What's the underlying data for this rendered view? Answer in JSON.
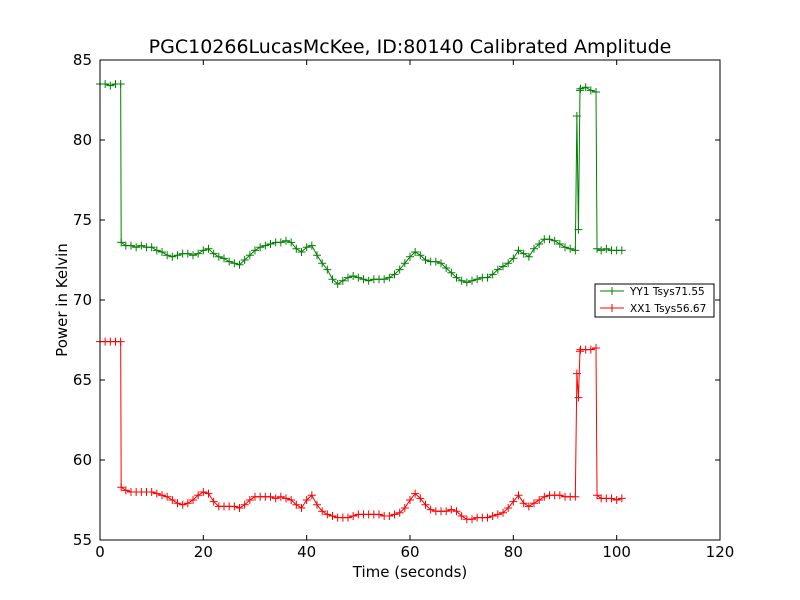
{
  "chart_data": {
    "type": "line",
    "title": "PGC10266LucasMcKee, ID:80140 Calibrated Amplitude",
    "xlabel": "Time (seconds)",
    "ylabel": "Power in Kelvin",
    "xlim": [
      0,
      120
    ],
    "ylim": [
      55,
      85
    ],
    "x_ticks": [
      "0",
      "20",
      "40",
      "60",
      "80",
      "100",
      "120"
    ],
    "y_ticks": [
      "55",
      "60",
      "65",
      "70",
      "75",
      "80",
      "85"
    ],
    "grid": false,
    "legend_placement": "center-right",
    "series": [
      {
        "name": "YY1 Tsys71.55",
        "color": "#008000",
        "marker": "+",
        "points": [
          [
            0,
            83.5
          ],
          [
            1,
            83.5
          ],
          [
            2,
            83.4
          ],
          [
            3,
            83.5
          ],
          [
            4,
            83.5
          ],
          [
            4.1,
            73.6
          ],
          [
            5,
            73.4
          ],
          [
            6,
            73.4
          ],
          [
            7,
            73.3
          ],
          [
            8,
            73.4
          ],
          [
            9,
            73.3
          ],
          [
            10,
            73.3
          ],
          [
            11,
            73.1
          ],
          [
            12,
            73.0
          ],
          [
            13,
            72.8
          ],
          [
            14,
            72.7
          ],
          [
            15,
            72.8
          ],
          [
            16,
            72.9
          ],
          [
            17,
            72.9
          ],
          [
            18,
            72.8
          ],
          [
            19,
            72.9
          ],
          [
            20,
            73.1
          ],
          [
            21,
            73.2
          ],
          [
            22,
            72.9
          ],
          [
            23,
            72.7
          ],
          [
            24,
            72.6
          ],
          [
            25,
            72.4
          ],
          [
            26,
            72.3
          ],
          [
            27,
            72.2
          ],
          [
            28,
            72.5
          ],
          [
            29,
            72.8
          ],
          [
            30,
            73.1
          ],
          [
            31,
            73.3
          ],
          [
            32,
            73.4
          ],
          [
            33,
            73.5
          ],
          [
            34,
            73.6
          ],
          [
            35,
            73.6
          ],
          [
            36,
            73.7
          ],
          [
            37,
            73.6
          ],
          [
            38,
            73.2
          ],
          [
            39,
            73.0
          ],
          [
            40,
            73.3
          ],
          [
            41,
            73.4
          ],
          [
            42,
            72.8
          ],
          [
            43,
            72.3
          ],
          [
            44,
            71.9
          ],
          [
            45,
            71.3
          ],
          [
            46,
            71.0
          ],
          [
            47,
            71.2
          ],
          [
            48,
            71.4
          ],
          [
            49,
            71.5
          ],
          [
            50,
            71.4
          ],
          [
            51,
            71.3
          ],
          [
            52,
            71.2
          ],
          [
            53,
            71.3
          ],
          [
            54,
            71.3
          ],
          [
            55,
            71.3
          ],
          [
            56,
            71.4
          ],
          [
            57,
            71.6
          ],
          [
            58,
            71.9
          ],
          [
            59,
            72.3
          ],
          [
            60,
            72.7
          ],
          [
            61,
            73.0
          ],
          [
            62,
            72.8
          ],
          [
            63,
            72.5
          ],
          [
            64,
            72.4
          ],
          [
            65,
            72.4
          ],
          [
            66,
            72.3
          ],
          [
            67,
            72.0
          ],
          [
            68,
            71.7
          ],
          [
            69,
            71.4
          ],
          [
            70,
            71.2
          ],
          [
            71,
            71.1
          ],
          [
            72,
            71.2
          ],
          [
            73,
            71.3
          ],
          [
            74,
            71.4
          ],
          [
            75,
            71.4
          ],
          [
            76,
            71.6
          ],
          [
            77,
            71.9
          ],
          [
            78,
            72.1
          ],
          [
            79,
            72.3
          ],
          [
            80,
            72.6
          ],
          [
            81,
            73.1
          ],
          [
            82,
            72.9
          ],
          [
            83,
            72.7
          ],
          [
            84,
            73.2
          ],
          [
            85,
            73.5
          ],
          [
            86,
            73.8
          ],
          [
            87,
            73.8
          ],
          [
            88,
            73.7
          ],
          [
            89,
            73.5
          ],
          [
            90,
            73.3
          ],
          [
            91,
            73.2
          ],
          [
            92,
            73.1
          ],
          [
            92.3,
            81.5
          ],
          [
            92.6,
            74.4
          ],
          [
            92.9,
            83.1
          ],
          [
            93,
            83.2
          ],
          [
            94,
            83.3
          ],
          [
            95,
            83.1
          ],
          [
            96,
            83.0
          ],
          [
            96.2,
            73.2
          ],
          [
            97,
            73.1
          ],
          [
            98,
            73.2
          ],
          [
            99,
            73.1
          ],
          [
            100,
            73.1
          ],
          [
            101,
            73.1
          ]
        ]
      },
      {
        "name": "XX1 Tsys56.67",
        "color": "#ff0000",
        "marker": "+",
        "points": [
          [
            0,
            67.4
          ],
          [
            1,
            67.4
          ],
          [
            2,
            67.4
          ],
          [
            3,
            67.4
          ],
          [
            4,
            67.4
          ],
          [
            4.1,
            58.3
          ],
          [
            5,
            58.1
          ],
          [
            6,
            58.0
          ],
          [
            7,
            58.0
          ],
          [
            8,
            58.0
          ],
          [
            9,
            58.0
          ],
          [
            10,
            58.0
          ],
          [
            11,
            57.9
          ],
          [
            12,
            57.8
          ],
          [
            13,
            57.7
          ],
          [
            14,
            57.5
          ],
          [
            15,
            57.3
          ],
          [
            16,
            57.2
          ],
          [
            17,
            57.3
          ],
          [
            18,
            57.5
          ],
          [
            19,
            57.8
          ],
          [
            20,
            58.0
          ],
          [
            21,
            57.9
          ],
          [
            22,
            57.4
          ],
          [
            23,
            57.1
          ],
          [
            24,
            57.1
          ],
          [
            25,
            57.1
          ],
          [
            26,
            57.1
          ],
          [
            27,
            57.0
          ],
          [
            28,
            57.2
          ],
          [
            29,
            57.5
          ],
          [
            30,
            57.7
          ],
          [
            31,
            57.7
          ],
          [
            32,
            57.7
          ],
          [
            33,
            57.7
          ],
          [
            34,
            57.6
          ],
          [
            35,
            57.7
          ],
          [
            36,
            57.6
          ],
          [
            37,
            57.5
          ],
          [
            38,
            57.2
          ],
          [
            39,
            57.0
          ],
          [
            40,
            57.5
          ],
          [
            41,
            57.8
          ],
          [
            42,
            57.2
          ],
          [
            43,
            56.8
          ],
          [
            44,
            56.6
          ],
          [
            45,
            56.5
          ],
          [
            46,
            56.4
          ],
          [
            47,
            56.4
          ],
          [
            48,
            56.4
          ],
          [
            49,
            56.5
          ],
          [
            50,
            56.6
          ],
          [
            51,
            56.6
          ],
          [
            52,
            56.6
          ],
          [
            53,
            56.6
          ],
          [
            54,
            56.6
          ],
          [
            55,
            56.5
          ],
          [
            56,
            56.5
          ],
          [
            57,
            56.6
          ],
          [
            58,
            56.7
          ],
          [
            59,
            57.0
          ],
          [
            60,
            57.5
          ],
          [
            61,
            57.9
          ],
          [
            62,
            57.6
          ],
          [
            63,
            57.2
          ],
          [
            64,
            56.9
          ],
          [
            65,
            56.8
          ],
          [
            66,
            56.8
          ],
          [
            67,
            56.8
          ],
          [
            68,
            56.9
          ],
          [
            69,
            56.8
          ],
          [
            70,
            56.5
          ],
          [
            71,
            56.3
          ],
          [
            72,
            56.3
          ],
          [
            73,
            56.4
          ],
          [
            74,
            56.4
          ],
          [
            75,
            56.4
          ],
          [
            76,
            56.5
          ],
          [
            77,
            56.6
          ],
          [
            78,
            56.7
          ],
          [
            79,
            57.0
          ],
          [
            80,
            57.4
          ],
          [
            81,
            57.8
          ],
          [
            82,
            57.3
          ],
          [
            83,
            57.1
          ],
          [
            84,
            57.3
          ],
          [
            85,
            57.5
          ],
          [
            86,
            57.7
          ],
          [
            87,
            57.8
          ],
          [
            88,
            57.8
          ],
          [
            89,
            57.8
          ],
          [
            90,
            57.7
          ],
          [
            91,
            57.7
          ],
          [
            92,
            57.7
          ],
          [
            92.3,
            65.4
          ],
          [
            92.6,
            63.9
          ],
          [
            92.9,
            66.8
          ],
          [
            93,
            66.9
          ],
          [
            94,
            66.9
          ],
          [
            95,
            66.9
          ],
          [
            96,
            67.0
          ],
          [
            96.2,
            57.8
          ],
          [
            97,
            57.6
          ],
          [
            98,
            57.6
          ],
          [
            99,
            57.6
          ],
          [
            100,
            57.5
          ],
          [
            101,
            57.6
          ]
        ]
      }
    ]
  }
}
